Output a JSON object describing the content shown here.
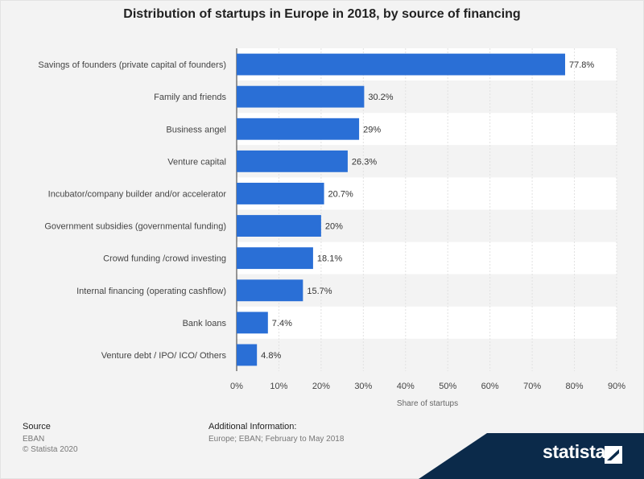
{
  "chart_data": {
    "type": "bar",
    "orientation": "horizontal",
    "title": "Distribution of startups in Europe in 2018, by source of financing",
    "categories": [
      "Savings of founders (private capital of founders)",
      "Family and friends",
      "Business angel",
      "Venture capital",
      "Incubator/company builder and/or accelerator",
      "Government subsidies (governmental funding)",
      "Crowd funding /crowd investing",
      "Internal financing (operating cashflow)",
      "Bank loans",
      "Venture debt / IPO/ ICO/ Others"
    ],
    "values": [
      77.8,
      30.2,
      29,
      26.3,
      20.7,
      20,
      18.1,
      15.7,
      7.4,
      4.8
    ],
    "value_labels": [
      "77.8%",
      "30.2%",
      "29%",
      "26.3%",
      "20.7%",
      "20%",
      "18.1%",
      "15.7%",
      "7.4%",
      "4.8%"
    ],
    "xlabel": "Share of startups",
    "ylabel": "",
    "xlim": [
      0,
      90
    ],
    "x_ticks": [
      "0%",
      "10%",
      "20%",
      "30%",
      "40%",
      "50%",
      "60%",
      "70%",
      "80%",
      "90%"
    ],
    "grid": true,
    "bar_color": "#2a6fd6"
  },
  "footer": {
    "source_label": "Source",
    "source_value": "EBAN",
    "copyright": "© Statista 2020",
    "additional_label": "Additional Information:",
    "additional_value": "Europe; EBAN; February to May 2018"
  },
  "brand": {
    "name": "statista"
  }
}
